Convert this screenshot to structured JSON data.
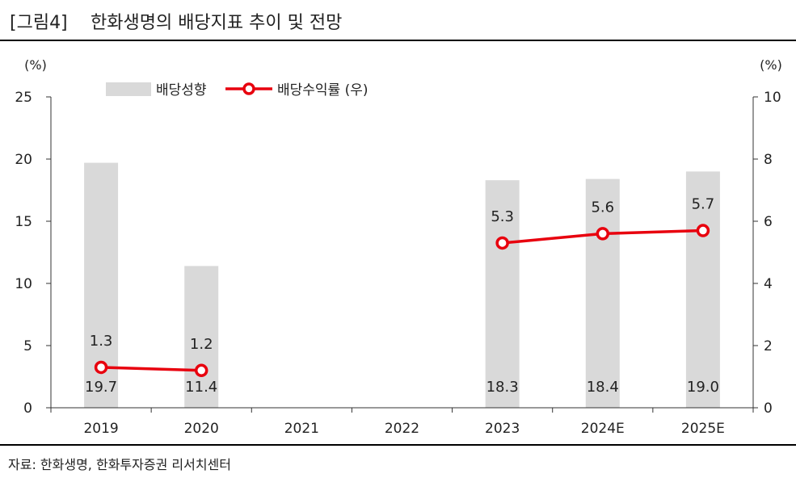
{
  "header": {
    "label": "[그림4]",
    "title": "한화생명의 배당지표 추이 및 전망"
  },
  "source": "자료: 한화생명, 한화투자증권 리서치센터",
  "colors": {
    "bar": "#d9d9d9",
    "line": "#e8000e",
    "axis": "#333333"
  },
  "chart_data": {
    "type": "bar+line",
    "categories": [
      "2019",
      "2020",
      "2021",
      "2022",
      "2023",
      "2024E",
      "2025E"
    ],
    "series": [
      {
        "name": "배당성향",
        "type": "bar",
        "axis": "left",
        "values": [
          19.7,
          11.4,
          null,
          null,
          18.3,
          18.4,
          19.0
        ],
        "labels": [
          "19.7",
          "11.4",
          "",
          "",
          "18.3",
          "18.4",
          "19.0"
        ]
      },
      {
        "name": "배당수익률 (우)",
        "type": "line",
        "axis": "right",
        "values": [
          1.3,
          1.2,
          null,
          null,
          5.3,
          5.6,
          5.7
        ],
        "labels": [
          "1.3",
          "1.2",
          "",
          "",
          "5.3",
          "5.6",
          "5.7"
        ]
      }
    ],
    "y_left": {
      "unit": "(%)",
      "min": 0,
      "max": 25,
      "ticks": [
        0,
        5,
        10,
        15,
        20,
        25
      ]
    },
    "y_right": {
      "unit": "(%)",
      "min": 0,
      "max": 10,
      "ticks": [
        0,
        2,
        4,
        6,
        8,
        10
      ]
    },
    "legend": [
      "배당성향",
      "배당수익률 (우)"
    ],
    "legend_position": "top-left"
  }
}
